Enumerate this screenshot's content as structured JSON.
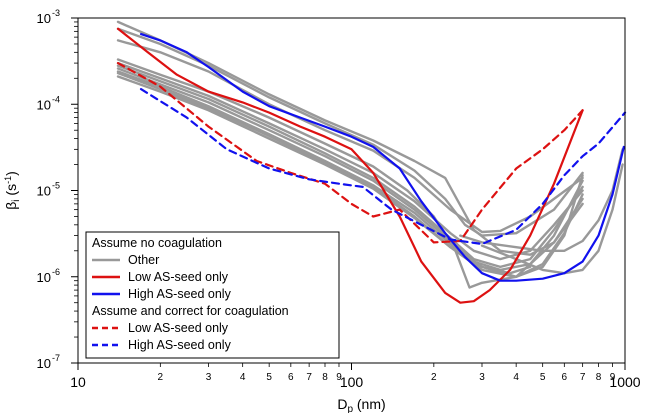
{
  "chart_data": {
    "type": "line",
    "x_scale": "log",
    "y_scale": "log",
    "xlim": [
      10,
      1000
    ],
    "ylim": [
      1e-07,
      0.001
    ],
    "xlabel": {
      "main": "D",
      "sub": "p",
      "rest": " (nm)"
    },
    "ylabel": {
      "main": "β",
      "sub": "i",
      "rest": " (s",
      "sup": "-1",
      "close": ")"
    },
    "x_major_ticks": [
      {
        "value": 10,
        "label": "10"
      },
      {
        "value": 100,
        "label": "100"
      },
      {
        "value": 1000,
        "label": "1000"
      }
    ],
    "x_minor_ticks": [
      {
        "value": 20,
        "label": "2"
      },
      {
        "value": 30,
        "label": "3"
      },
      {
        "value": 40,
        "label": "4"
      },
      {
        "value": 50,
        "label": "5"
      },
      {
        "value": 60,
        "label": "6"
      },
      {
        "value": 70,
        "label": "7"
      },
      {
        "value": 80,
        "label": "8"
      },
      {
        "value": 90,
        "label": "9"
      },
      {
        "value": 200,
        "label": "2"
      },
      {
        "value": 300,
        "label": "3"
      },
      {
        "value": 400,
        "label": "4"
      },
      {
        "value": 500,
        "label": "5"
      },
      {
        "value": 600,
        "label": "6"
      },
      {
        "value": 700,
        "label": "7"
      },
      {
        "value": 800,
        "label": "8"
      },
      {
        "value": 900,
        "label": "9"
      }
    ],
    "y_major_ticks": [
      {
        "value": 1e-07,
        "base": "10",
        "exp": "-7"
      },
      {
        "value": 1e-06,
        "base": "10",
        "exp": "-6"
      },
      {
        "value": 1e-05,
        "base": "10",
        "exp": "-5"
      },
      {
        "value": 0.0001,
        "base": "10",
        "exp": "-4"
      },
      {
        "value": 0.001,
        "base": "10",
        "exp": "-3"
      }
    ],
    "legend": {
      "placement": "bottom-left",
      "groups": [
        {
          "title": "Assume no coagulation",
          "items": [
            {
              "label": "Other",
              "color": "#999999",
              "dash": "solid"
            },
            {
              "label": "Low AS-seed only",
              "color": "#dd1111",
              "dash": "solid"
            },
            {
              "label": "High AS-seed only",
              "color": "#1111ee",
              "dash": "solid"
            }
          ]
        },
        {
          "title": "Assume and correct for coagulation",
          "items": [
            {
              "label": "Low AS-seed only",
              "color": "#dd1111",
              "dash": "dashed"
            },
            {
              "label": "High AS-seed only",
              "color": "#1111ee",
              "dash": "dashed"
            }
          ]
        }
      ]
    },
    "series": [
      {
        "group": "other",
        "color": "#999999",
        "dash": "solid",
        "x": [
          14,
          20,
          30,
          50,
          80,
          120,
          170,
          220,
          280,
          350,
          450,
          550,
          700
        ],
        "y": [
          0.0009,
          0.00055,
          0.0003,
          0.00013,
          6.5e-05,
          3.8e-05,
          2.2e-05,
          1.4e-05,
          3.5e-06,
          2e-06,
          1.8e-06,
          2.5e-06,
          8e-06
        ]
      },
      {
        "group": "other",
        "color": "#999999",
        "dash": "solid",
        "x": [
          14,
          20,
          30,
          50,
          80,
          120,
          170,
          220,
          260,
          300,
          400,
          550,
          700
        ],
        "y": [
          0.00075,
          0.0005,
          0.00028,
          0.00012,
          6e-05,
          3.4e-05,
          1.7e-05,
          8e-06,
          4e-06,
          3e-06,
          3.2e-06,
          6e-06,
          1.6e-05
        ]
      },
      {
        "group": "other",
        "color": "#999999",
        "dash": "solid",
        "x": [
          14,
          20,
          30,
          50,
          80,
          120,
          170,
          230,
          300,
          350,
          450,
          550,
          700
        ],
        "y": [
          0.00055,
          0.0004,
          0.00024,
          0.0001,
          5e-05,
          2.9e-05,
          1.4e-05,
          6e-06,
          3.3e-06,
          3.4e-06,
          5e-06,
          8e-06,
          1.4e-05
        ]
      },
      {
        "group": "other",
        "color": "#999999",
        "dash": "solid",
        "x": [
          14,
          20,
          30,
          50,
          80,
          120,
          160,
          200,
          240,
          270,
          300,
          400,
          550,
          700
        ],
        "y": [
          0.00033,
          0.00022,
          0.00014,
          7e-05,
          3.5e-05,
          1.9e-05,
          1e-05,
          5e-06,
          2e-06,
          7.5e-07,
          8.5e-07,
          1e-06,
          2.5e-06,
          7e-06
        ]
      },
      {
        "group": "other",
        "color": "#999999",
        "dash": "solid",
        "x": [
          14,
          20,
          30,
          50,
          80,
          120,
          170,
          230,
          280,
          350,
          450,
          550,
          700
        ],
        "y": [
          0.0003,
          0.0002,
          0.000125,
          6e-05,
          3e-05,
          1.6e-05,
          7.5e-06,
          3.2e-06,
          2e-06,
          1.6e-06,
          2e-06,
          4e-06,
          1e-05
        ]
      },
      {
        "group": "other",
        "color": "#999999",
        "dash": "solid",
        "x": [
          14,
          20,
          30,
          50,
          80,
          120,
          170,
          230,
          280,
          350,
          450,
          550,
          700
        ],
        "y": [
          0.00028,
          0.000185,
          0.000115,
          5.5e-05,
          2.7e-05,
          1.4e-05,
          6.5e-06,
          2.8e-06,
          1.6e-06,
          1.3e-06,
          1.6e-06,
          3.5e-06,
          1.1e-05
        ]
      },
      {
        "group": "other",
        "color": "#999999",
        "dash": "solid",
        "x": [
          14,
          20,
          30,
          50,
          80,
          120,
          170,
          230,
          280,
          350,
          450,
          550,
          700
        ],
        "y": [
          0.00026,
          0.00017,
          0.000105,
          5e-05,
          2.5e-05,
          1.3e-05,
          6e-06,
          2.6e-06,
          1.5e-06,
          1.2e-06,
          1.4e-06,
          3e-06,
          1.3e-05
        ]
      },
      {
        "group": "other",
        "color": "#999999",
        "dash": "solid",
        "x": [
          14,
          20,
          30,
          50,
          80,
          120,
          170,
          230,
          300,
          400,
          500,
          600,
          700
        ],
        "y": [
          0.00024,
          0.00016,
          9.5e-05,
          4.5e-05,
          2.2e-05,
          1.15e-05,
          5.5e-06,
          2.4e-06,
          1.3e-06,
          1e-06,
          1.3e-06,
          3e-06,
          1.5e-05
        ]
      },
      {
        "group": "other",
        "color": "#999999",
        "dash": "solid",
        "x": [
          14,
          20,
          30,
          50,
          80,
          120,
          170,
          230,
          300,
          400,
          500,
          600,
          700
        ],
        "y": [
          0.00023,
          0.00015,
          9e-05,
          4.3e-05,
          2.1e-05,
          1.1e-05,
          5e-06,
          2.2e-06,
          1.2e-06,
          1e-06,
          1.4e-06,
          3.2e-06,
          9e-06
        ]
      },
      {
        "group": "other",
        "color": "#999999",
        "dash": "solid",
        "x": [
          14,
          20,
          30,
          50,
          80,
          120,
          170,
          230,
          300,
          380,
          450
        ],
        "y": [
          0.00021,
          0.00014,
          8.5e-05,
          4e-05,
          2e-05,
          1.05e-05,
          4.8e-06,
          2.2e-06,
          1.3e-06,
          1.1e-06,
          1.3e-06
        ]
      },
      {
        "group": "other",
        "color": "#999999",
        "dash": "solid",
        "x": [
          300,
          400,
          500,
          600,
          700,
          800,
          900,
          980
        ],
        "y": [
          2.3e-06,
          1.6e-06,
          1.2e-06,
          1.1e-06,
          1.2e-06,
          2e-06,
          6e-06,
          2e-05
        ]
      },
      {
        "group": "other",
        "color": "#999999",
        "dash": "solid",
        "x": [
          250,
          300,
          400,
          500,
          600,
          700,
          800,
          900,
          980
        ],
        "y": [
          3e-06,
          2.5e-06,
          2.2e-06,
          2e-06,
          2e-06,
          2.6e-06,
          4.5e-06,
          1e-05,
          3e-05
        ]
      },
      {
        "name": "Low AS-seed only",
        "group": "no-coag",
        "color": "#dd1111",
        "dash": "solid",
        "x": [
          14,
          18,
          23,
          30,
          40,
          50,
          65,
          80,
          100,
          120,
          150,
          180,
          220,
          250,
          280,
          320,
          380,
          450,
          550,
          700
        ],
        "y": [
          0.00075,
          0.0004,
          0.00022,
          0.00014,
          0.000105,
          8e-05,
          5.5e-05,
          4.2e-05,
          3e-05,
          1.6e-05,
          5e-06,
          1.5e-06,
          6.5e-07,
          5e-07,
          5.2e-07,
          7e-07,
          1.2e-06,
          3e-06,
          1.2e-05,
          8.5e-05
        ]
      },
      {
        "name": "High AS-seed only",
        "group": "no-coag",
        "color": "#1111ee",
        "dash": "solid",
        "x": [
          17,
          20,
          25,
          30,
          40,
          50,
          65,
          80,
          100,
          120,
          150,
          180,
          220,
          260,
          300,
          350,
          400,
          500,
          600,
          700,
          800,
          900,
          990
        ],
        "y": [
          0.00065,
          0.00055,
          0.0004,
          0.00027,
          0.00014,
          9.5e-05,
          7e-05,
          5.5e-05,
          4.2e-05,
          3.2e-05,
          1.8e-05,
          7.5e-06,
          3.2e-06,
          1.7e-06,
          1.1e-06,
          9e-07,
          9e-07,
          9.5e-07,
          1.1e-06,
          1.5e-06,
          3e-06,
          9e-06,
          3.2e-05
        ]
      },
      {
        "name": "Low AS-seed only",
        "group": "coag",
        "color": "#dd1111",
        "dash": "dashed",
        "x": [
          14,
          20,
          30,
          45,
          60,
          80,
          100,
          120,
          150,
          200,
          250,
          300,
          400,
          500,
          600,
          700
        ],
        "y": [
          0.0003,
          0.00016,
          5.5e-05,
          2.2e-05,
          1.6e-05,
          1.2e-05,
          7e-06,
          5e-06,
          6e-06,
          2.5e-06,
          2.6e-06,
          6e-06,
          1.8e-05,
          3e-05,
          5e-05,
          8.5e-05
        ]
      },
      {
        "name": "High AS-seed only",
        "group": "coag",
        "color": "#1111ee",
        "dash": "dashed",
        "x": [
          17,
          25,
          35,
          50,
          70,
          90,
          110,
          140,
          180,
          230,
          300,
          400,
          500,
          600,
          700,
          800,
          1000
        ],
        "y": [
          0.00015,
          7e-05,
          3e-05,
          1.8e-05,
          1.35e-05,
          1.2e-05,
          1.1e-05,
          6e-06,
          4e-06,
          2.7e-06,
          2.4e-06,
          3.5e-06,
          7e-06,
          1.5e-05,
          2.5e-05,
          3.5e-05,
          8e-05
        ]
      }
    ]
  }
}
